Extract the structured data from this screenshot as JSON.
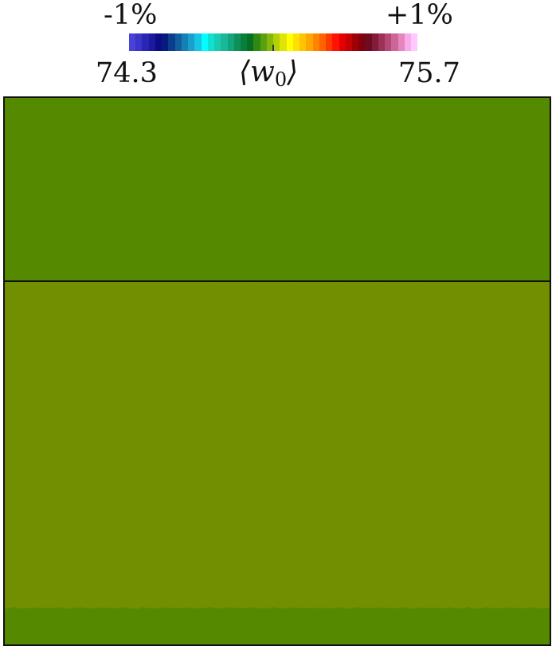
{
  "colorbar": {
    "pct_min": "-1%",
    "pct_max": "+1%",
    "val_min": "74.3",
    "val_max": "75.7",
    "title_main": "⟨w",
    "title_sub": "0",
    "title_end": "⟩",
    "colors": [
      "#4a42d6",
      "#3a34c8",
      "#2a26b4",
      "#1a1a9e",
      "#0c0c86",
      "#061c7a",
      "#0b3e8c",
      "#11609e",
      "#1580b4",
      "#1aa0cc",
      "#18c4e4",
      "#00ffff",
      "#10e0d0",
      "#16ccb2",
      "#1ab898",
      "#14a47a",
      "#0e905a",
      "#087e3c",
      "#067022",
      "#2e8a12",
      "#5aa010",
      "#86b80c",
      "#b0d008",
      "#e0e400",
      "#ffff00",
      "#ffe000",
      "#ffc400",
      "#ffa600",
      "#ff8400",
      "#ff6200",
      "#ff3a00",
      "#ff1200",
      "#e40000",
      "#c40000",
      "#a00004",
      "#80000e",
      "#6c0c20",
      "#841a3a",
      "#9c3056",
      "#b44a74",
      "#cc6696",
      "#e486bc",
      "#f8aaea",
      "#ffc8ff"
    ]
  },
  "field": {
    "top_band_color": "#558a00",
    "middle_band_color": "#718f00",
    "bottom_band_color": "#558a00",
    "divider_color": "#111111"
  }
}
